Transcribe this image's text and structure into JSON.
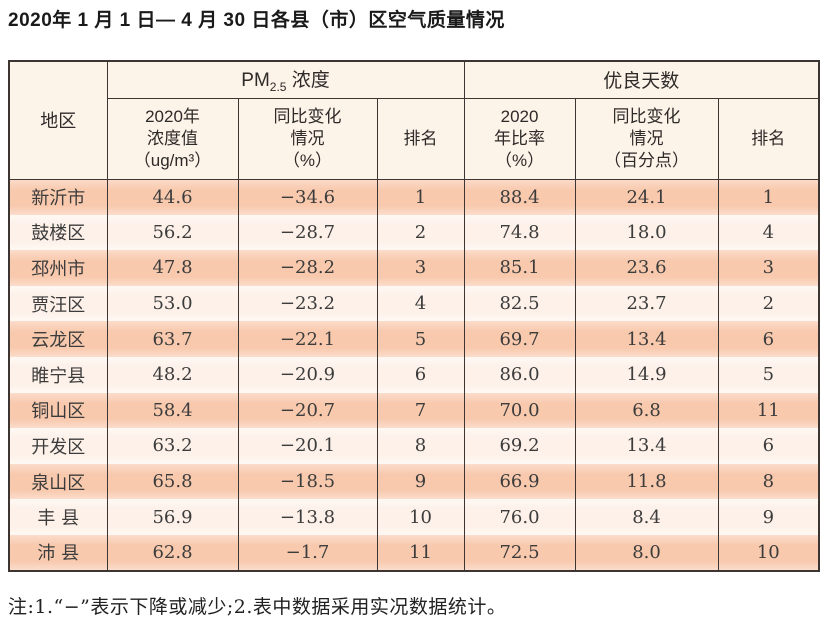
{
  "page_title": "2020年 1 月 1 日— 4 月 30 日各县（市）区空气质量情况",
  "note": "注:1.“−”表示下降或减少;2.表中数据采用实况数据统计。",
  "colors": {
    "row_stripe_dark": "#f8c9ad",
    "row_stripe_light": "#fdf1e9",
    "header_bg": "#fcf3e9",
    "border": "#3c3531"
  },
  "table": {
    "header": {
      "region": "地区",
      "pm_prefix": "PM",
      "pm_sub": "2.5",
      "pm_suffix": " 浓度",
      "good_days": "优良天数",
      "pm_value": "2020年\n浓度值\n（ug/m³）",
      "pm_change": "同比变化\n情况\n（%）",
      "pm_rank": "排名",
      "good_rate": "2020\n年比率\n（%）",
      "good_change": "同比变化\n情况\n（百分点）",
      "good_rank": "排名"
    },
    "rows": [
      {
        "region": "新沂市",
        "pm_value": "44.6",
        "pm_change": "−34.6",
        "pm_rank": "1",
        "good_rate": "88.4",
        "good_change": "24.1",
        "good_rank": "1"
      },
      {
        "region": "鼓楼区",
        "pm_value": "56.2",
        "pm_change": "−28.7",
        "pm_rank": "2",
        "good_rate": "74.8",
        "good_change": "18.0",
        "good_rank": "4"
      },
      {
        "region": "邳州市",
        "pm_value": "47.8",
        "pm_change": "−28.2",
        "pm_rank": "3",
        "good_rate": "85.1",
        "good_change": "23.6",
        "good_rank": "3"
      },
      {
        "region": "贾汪区",
        "pm_value": "53.0",
        "pm_change": "−23.2",
        "pm_rank": "4",
        "good_rate": "82.5",
        "good_change": "23.7",
        "good_rank": "2"
      },
      {
        "region": "云龙区",
        "pm_value": "63.7",
        "pm_change": "−22.1",
        "pm_rank": "5",
        "good_rate": "69.7",
        "good_change": "13.4",
        "good_rank": "6"
      },
      {
        "region": "睢宁县",
        "pm_value": "48.2",
        "pm_change": "−20.9",
        "pm_rank": "6",
        "good_rate": "86.0",
        "good_change": "14.9",
        "good_rank": "5"
      },
      {
        "region": "铜山区",
        "pm_value": "58.4",
        "pm_change": "−20.7",
        "pm_rank": "7",
        "good_rate": "70.0",
        "good_change": "6.8",
        "good_rank": "11"
      },
      {
        "region": "开发区",
        "pm_value": "63.2",
        "pm_change": "−20.1",
        "pm_rank": "8",
        "good_rate": "69.2",
        "good_change": "13.4",
        "good_rank": "6"
      },
      {
        "region": "泉山区",
        "pm_value": "65.8",
        "pm_change": "−18.5",
        "pm_rank": "9",
        "good_rate": "66.9",
        "good_change": "11.8",
        "good_rank": "8"
      },
      {
        "region": "丰 县",
        "pm_value": "56.9",
        "pm_change": "−13.8",
        "pm_rank": "10",
        "good_rate": "76.0",
        "good_change": "8.4",
        "good_rank": "9"
      },
      {
        "region": "沛 县",
        "pm_value": "62.8",
        "pm_change": "−1.7",
        "pm_rank": "11",
        "good_rate": "72.5",
        "good_change": "8.0",
        "good_rank": "10"
      }
    ]
  },
  "chart_data": {
    "type": "table",
    "title": "2020年 1 月 1 日— 4 月 30 日各县（市）区空气质量情况",
    "columns": [
      "地区",
      "PM2.5浓度 2020年浓度值（ug/m³）",
      "PM2.5浓度 同比变化情况（%）",
      "PM2.5浓度 排名",
      "优良天数 2020年比率（%）",
      "优良天数 同比变化情况（百分点）",
      "优良天数 排名"
    ],
    "rows": [
      [
        "新沂市",
        44.6,
        -34.6,
        1,
        88.4,
        24.1,
        1
      ],
      [
        "鼓楼区",
        56.2,
        -28.7,
        2,
        74.8,
        18.0,
        4
      ],
      [
        "邳州市",
        47.8,
        -28.2,
        3,
        85.1,
        23.6,
        3
      ],
      [
        "贾汪区",
        53.0,
        -23.2,
        4,
        82.5,
        23.7,
        2
      ],
      [
        "云龙区",
        63.7,
        -22.1,
        5,
        69.7,
        13.4,
        6
      ],
      [
        "睢宁县",
        48.2,
        -20.9,
        6,
        86.0,
        14.9,
        5
      ],
      [
        "铜山区",
        58.4,
        -20.7,
        7,
        70.0,
        6.8,
        11
      ],
      [
        "开发区",
        63.2,
        -20.1,
        8,
        69.2,
        13.4,
        6
      ],
      [
        "泉山区",
        65.8,
        -18.5,
        9,
        66.9,
        11.8,
        8
      ],
      [
        "丰县",
        56.9,
        -13.8,
        10,
        76.0,
        8.4,
        9
      ],
      [
        "沛县",
        62.8,
        -1.7,
        11,
        72.5,
        8.0,
        10
      ]
    ]
  }
}
